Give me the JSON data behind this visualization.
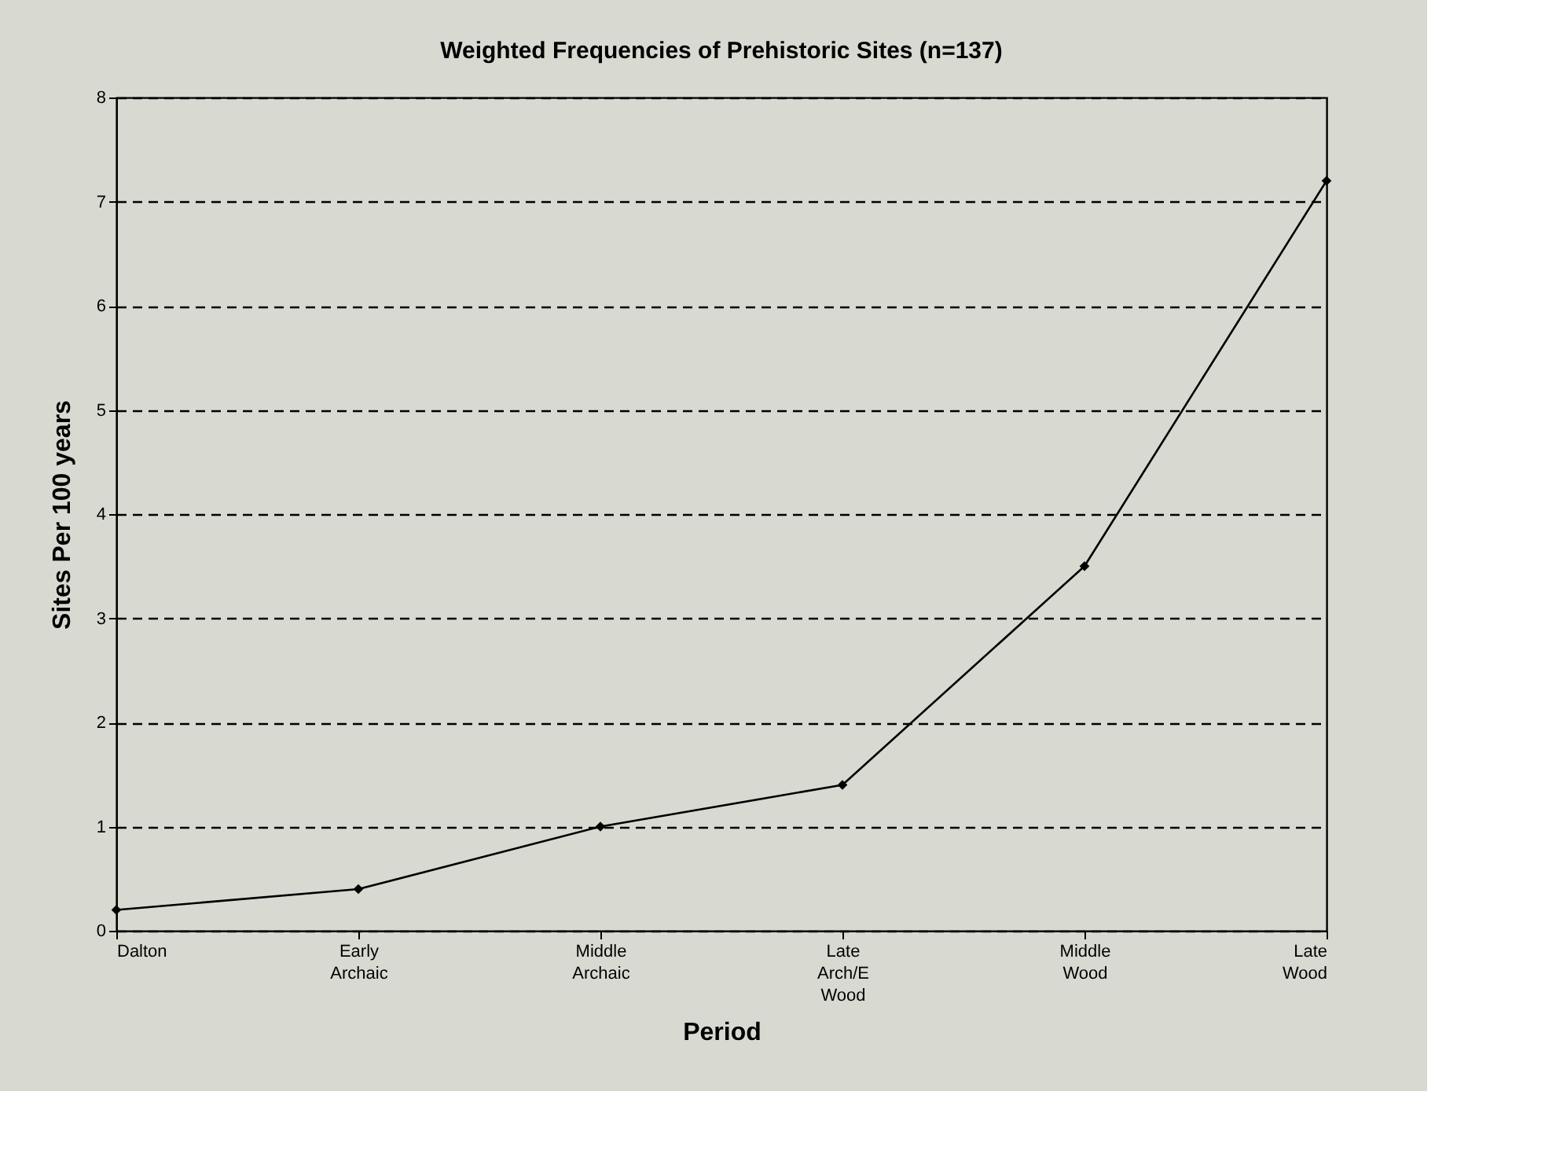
{
  "chart_data": {
    "type": "line",
    "title": "Weighted Frequencies of Prehistoric Sites (n=137)",
    "xlabel": "Period",
    "ylabel": "Sites Per 100 years",
    "categories": [
      "Dalton",
      "Early Archaic",
      "Middle Archaic",
      "Late Arch/E Wood",
      "Middle Wood",
      "Late Wood"
    ],
    "series": [
      {
        "color": "#000000",
        "values": [
          0.2,
          0.4,
          1.0,
          1.4,
          3.5,
          7.2
        ]
      }
    ],
    "ylim": [
      0,
      8
    ],
    "yticks": [
      0,
      1,
      2,
      3,
      4,
      5,
      6,
      7,
      8
    ],
    "grid": "y",
    "marker": "diamond",
    "line_style": "solid"
  }
}
